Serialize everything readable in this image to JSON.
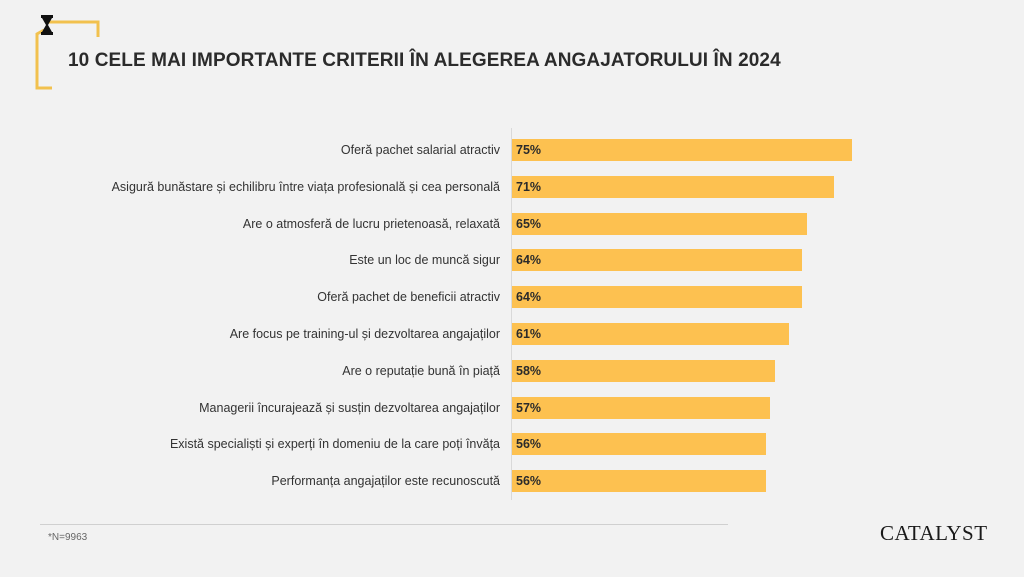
{
  "header": {
    "title": "10 CELE MAI IMPORTANTE CRITERII ÎN ALEGEREA ANGAJATORULUI ÎN 2024",
    "logo_icon": "hourglass-icon"
  },
  "chart_data": {
    "type": "bar",
    "orientation": "horizontal",
    "title": "10 CELE MAI IMPORTANTE CRITERII ÎN ALEGEREA ANGAJATORULUI ÎN 2024",
    "categories": [
      "Oferă pachet salarial atractiv",
      "Asigură bunăstare și echilibru între viața profesională și cea personală",
      "Are o atmosferă de lucru prietenoasă, relaxată",
      "Este un loc de muncă sigur",
      "Oferă pachet de beneficii atractiv",
      "Are focus pe training-ul și dezvoltarea angajaților",
      "Are o reputație bună în piață",
      "Managerii încurajează și susțin dezvoltarea angajaților",
      "Există specialiști și experți în domeniu de la care poți învăța",
      "Performanța angajaților este recunoscută"
    ],
    "values": [
      75,
      71,
      65,
      64,
      64,
      61,
      58,
      57,
      56,
      56
    ],
    "value_labels": [
      "75%",
      "71%",
      "65%",
      "64%",
      "64%",
      "61%",
      "58%",
      "57%",
      "56%",
      "56%"
    ],
    "xlabel": "",
    "ylabel": "",
    "xlim": [
      0,
      100
    ],
    "bar_color": "#fdc150"
  },
  "footer": {
    "note": "*N=9963",
    "brand": "CATALYST"
  }
}
